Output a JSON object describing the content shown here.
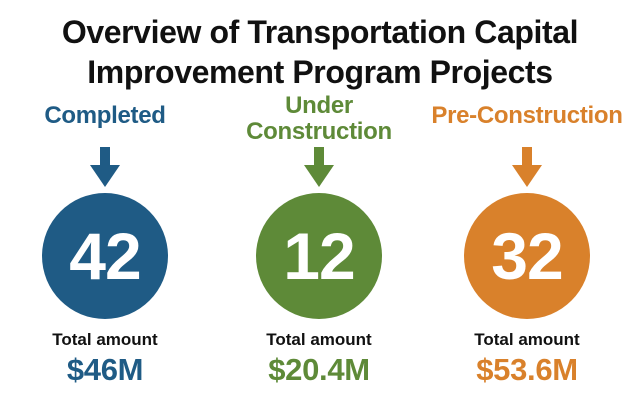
{
  "title": {
    "line1": "Overview of Transportation Capital",
    "line2": "Improvement Program Projects"
  },
  "colors": {
    "completed": "#1f5b85",
    "under_construction": "#5e8a38",
    "pre_construction": "#d9812b"
  },
  "icons": {
    "status_arrow": "arrow-down-icon"
  },
  "categories": [
    {
      "label_lines": [
        "Completed"
      ],
      "count": "42",
      "amount_label": "Total amount",
      "amount": "$46M"
    },
    {
      "label_lines": [
        "Under",
        "Construction"
      ],
      "count": "12",
      "amount_label": "Total amount",
      "amount": "$20.4M"
    },
    {
      "label_lines": [
        "Pre-Construction"
      ],
      "count": "32",
      "amount_label": "Total amount",
      "amount": "$53.6M"
    }
  ]
}
